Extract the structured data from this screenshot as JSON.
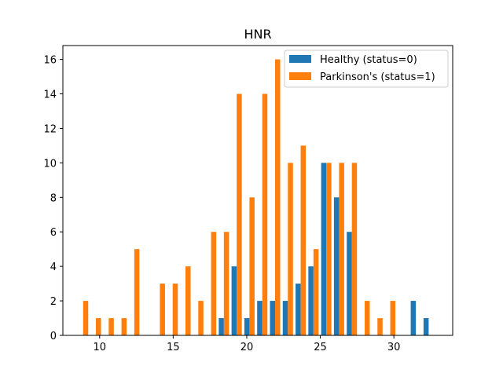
{
  "chart_data": {
    "type": "bar",
    "title": "HNR",
    "xlabel": "",
    "ylabel": "",
    "xlim": [
      7.5,
      34.0
    ],
    "ylim": [
      0,
      16.8
    ],
    "xticks": [
      10,
      15,
      20,
      25,
      30
    ],
    "yticks": [
      0,
      2,
      4,
      6,
      8,
      10,
      12,
      14,
      16
    ],
    "grid": false,
    "legend_position": "top-right",
    "bin_edges": [
      8.44,
      9.31,
      10.18,
      11.05,
      11.92,
      12.79,
      13.66,
      14.53,
      15.4,
      16.27,
      17.14,
      18.01,
      18.88,
      19.75,
      20.62,
      21.49,
      22.36,
      23.23,
      24.1,
      24.97,
      25.84,
      26.71,
      27.58,
      28.45,
      29.32,
      30.19,
      31.06,
      31.93,
      32.8
    ],
    "series": [
      {
        "name": "Healthy (status=0)",
        "color": "#1f77b4",
        "values": [
          0,
          0,
          0,
          0,
          0,
          0,
          0,
          0,
          0,
          0,
          0,
          1,
          4,
          1,
          2,
          2,
          2,
          3,
          4,
          10,
          8,
          6,
          0,
          0,
          0,
          0,
          2,
          1
        ]
      },
      {
        "name": "Parkinson's (status=1)",
        "color": "#ff7f0e",
        "values": [
          2,
          1,
          1,
          1,
          5,
          0,
          3,
          3,
          4,
          2,
          6,
          6,
          14,
          8,
          14,
          16,
          10,
          11,
          5,
          10,
          10,
          10,
          2,
          1,
          2,
          0,
          0,
          0
        ]
      }
    ]
  }
}
